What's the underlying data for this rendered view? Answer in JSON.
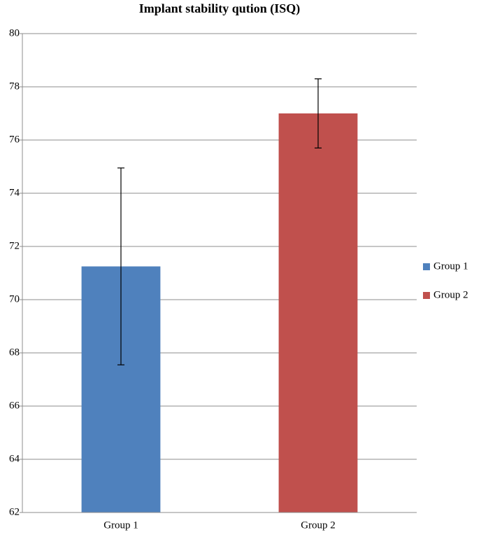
{
  "chart_data": {
    "type": "bar",
    "title": "Implant stability qution (ISQ)",
    "categories": [
      "Group 1",
      "Group 2"
    ],
    "values": [
      71.25,
      77
    ],
    "errors": [
      3.7,
      1.3
    ],
    "colors": [
      "#4f81bd",
      "#c0504d"
    ],
    "ylim": [
      62,
      80
    ],
    "yticks": [
      62,
      64,
      66,
      68,
      70,
      72,
      74,
      76,
      78,
      80
    ],
    "grid": true,
    "legend": "right"
  }
}
